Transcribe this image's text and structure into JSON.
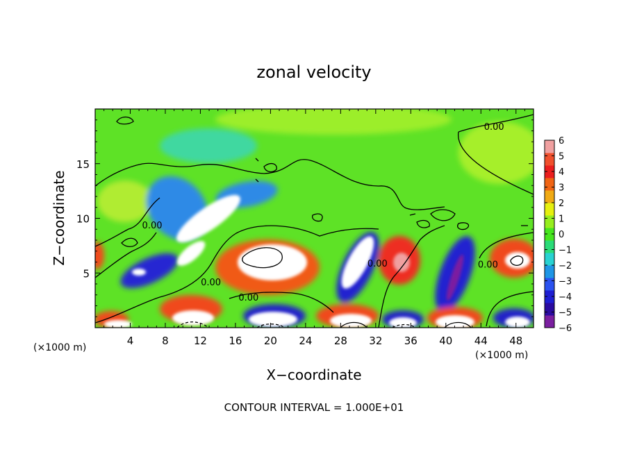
{
  "chart_data": {
    "type": "heatmap",
    "title": "zonal velocity",
    "xlabel": "X−coordinate",
    "ylabel": "Z−coordinate",
    "x_unit_left": "(×1000 m)",
    "x_unit_right": "(×1000 m)",
    "xlim": [
      0,
      50
    ],
    "ylim": [
      0,
      20
    ],
    "x_ticks": [
      4,
      8,
      12,
      16,
      20,
      24,
      28,
      32,
      36,
      40,
      44,
      48
    ],
    "x_tick_labels": [
      "4",
      "8",
      "12",
      "16",
      "20",
      "24",
      "28",
      "32",
      "36",
      "40",
      "44",
      "48"
    ],
    "y_ticks": [
      5,
      10,
      15
    ],
    "y_tick_labels": [
      "5",
      "10",
      "15"
    ],
    "colorbar": {
      "range": [
        -6,
        6
      ],
      "ticks": [
        6,
        5,
        4,
        3,
        2,
        1,
        0,
        -1,
        -2,
        -3,
        -4,
        -5,
        -6
      ],
      "tick_labels": [
        "6",
        "5",
        "4",
        "3",
        "2",
        "1",
        "0",
        "−1",
        "−2",
        "−3",
        "−4",
        "−5",
        "−6"
      ],
      "colors": [
        "#7b1fa0",
        "#2a0ba0",
        "#1e1ed2",
        "#2a52f0",
        "#1f96e6",
        "#28d2d2",
        "#2adc78",
        "#46e61e",
        "#96ee1e",
        "#e6f00f",
        "#f0aa14",
        "#f06414",
        "#eb1e1e",
        "#f0502d",
        "#f0a0a0"
      ],
      "saturation_low": "#7b1fa0",
      "saturation_high": "#ffffff"
    },
    "contour_labels": [
      {
        "text": "0.00",
        "x": 45.5,
        "y": 18.4
      },
      {
        "text": "0.00",
        "x": 6.5,
        "y": 9.4
      },
      {
        "text": "0.00",
        "x": 13.2,
        "y": 4.2
      },
      {
        "text": "0.00",
        "x": 17.5,
        "y": 2.8
      },
      {
        "text": "0.00",
        "x": 32.2,
        "y": 5.9
      },
      {
        "text": "0.00",
        "x": 44.8,
        "y": 5.8
      }
    ],
    "annotation": "CONTOUR INTERVAL = 1.000E+01",
    "grid": false
  }
}
